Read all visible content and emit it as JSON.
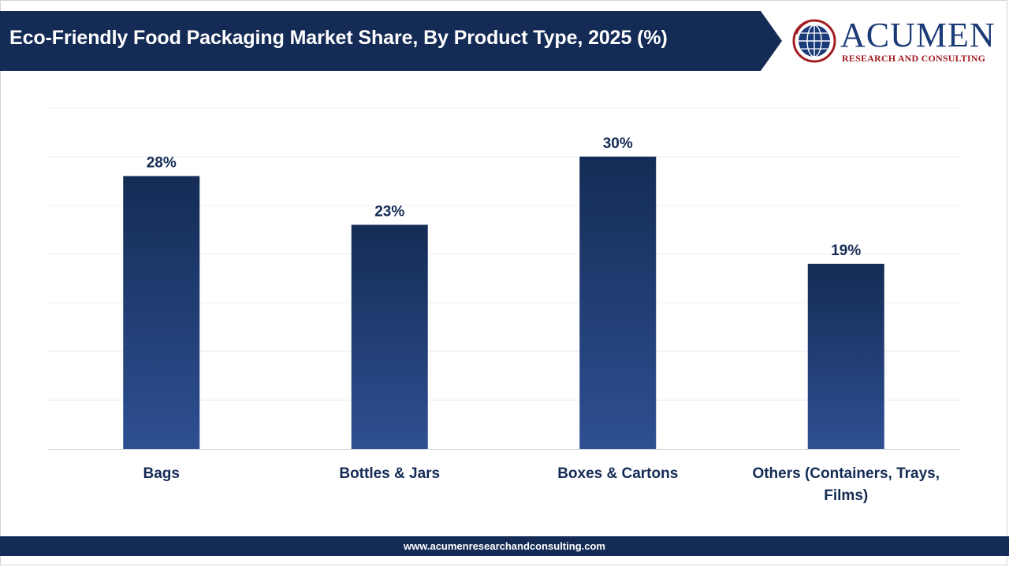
{
  "header": {
    "title": "Eco-Friendly Food Packaging Market Share, By Product Type, 2025 (%)"
  },
  "logo": {
    "name": "ACUMEN",
    "tagline": "RESEARCH AND CONSULTING"
  },
  "footer": {
    "url": "www.acumenresearchandconsulting.com"
  },
  "colors": {
    "header": "#142b55",
    "bar_top": "#142c55",
    "bar_bottom": "#2e4f92",
    "label": "#142b55",
    "logo_blue": "#1b3a78",
    "logo_red": "#a21d22"
  },
  "chart_data": {
    "type": "bar",
    "title": "Eco-Friendly Food Packaging Market Share, By Product Type, 2025 (%)",
    "categories": [
      "Bags",
      "Bottles & Jars",
      "Boxes & Cartons",
      "Others (Containers, Trays, Films)"
    ],
    "category_lines": [
      [
        "Bags"
      ],
      [
        "Bottles & Jars"
      ],
      [
        "Boxes & Cartons"
      ],
      [
        "Others (Containers, Trays,",
        "Films)"
      ]
    ],
    "values": [
      28,
      23,
      30,
      19
    ],
    "data_labels": [
      "28%",
      "23%",
      "30%",
      "19%"
    ],
    "unit": "%",
    "ylim": [
      0,
      35
    ],
    "grid": true,
    "legend": "none"
  }
}
